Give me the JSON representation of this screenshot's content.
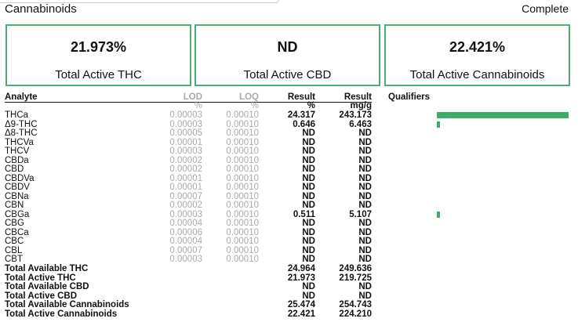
{
  "header": {
    "title": "Cannabinoids",
    "status": "Complete"
  },
  "summary": [
    {
      "value": "21.973%",
      "label": "Total Active THC"
    },
    {
      "value": "ND",
      "label": "Total Active CBD"
    },
    {
      "value": "22.421%",
      "label": "Total Active Cannabinoids"
    }
  ],
  "table": {
    "columns": [
      "Analyte",
      "LOD",
      "LOQ",
      "Result",
      "Result",
      "Qualifiers"
    ],
    "units": [
      "%",
      "%",
      "%",
      "mg/g"
    ],
    "rows": [
      [
        "THCa",
        "0.00003",
        "0.00010",
        "24.317",
        "243.173"
      ],
      [
        "Δ9-THC",
        "0.00003",
        "0.00010",
        "0.646",
        "6.463"
      ],
      [
        "Δ8-THC",
        "0.00005",
        "0.00010",
        "ND",
        "ND"
      ],
      [
        "THCVa",
        "0.00001",
        "0.00010",
        "ND",
        "ND"
      ],
      [
        "THCV",
        "0.00003",
        "0.00010",
        "ND",
        "ND"
      ],
      [
        "CBDa",
        "0.00002",
        "0.00010",
        "ND",
        "ND"
      ],
      [
        "CBD",
        "0.00002",
        "0.00010",
        "ND",
        "ND"
      ],
      [
        "CBDVa",
        "0.00001",
        "0.00010",
        "ND",
        "ND"
      ],
      [
        "CBDV",
        "0.00001",
        "0.00010",
        "ND",
        "ND"
      ],
      [
        "CBNa",
        "0.00007",
        "0.00010",
        "ND",
        "ND"
      ],
      [
        "CBN",
        "0.00002",
        "0.00010",
        "ND",
        "ND"
      ],
      [
        "CBGa",
        "0.00003",
        "0.00010",
        "0.511",
        "5.107"
      ],
      [
        "CBG",
        "0.00004",
        "0.00010",
        "ND",
        "ND"
      ],
      [
        "CBCa",
        "0.00006",
        "0.00010",
        "ND",
        "ND"
      ],
      [
        "CBC",
        "0.00004",
        "0.00010",
        "ND",
        "ND"
      ],
      [
        "CBL",
        "0.00007",
        "0.00010",
        "ND",
        "ND"
      ],
      [
        "CBT",
        "0.00003",
        "0.00010",
        "ND",
        "ND"
      ]
    ],
    "totals": [
      [
        "Total Available THC",
        "24.964",
        "249.636"
      ],
      [
        "Total Active THC",
        "21.973",
        "219.725"
      ],
      [
        "Total Available CBD",
        "ND",
        "ND"
      ],
      [
        "Total Active CBD",
        "ND",
        "ND"
      ],
      [
        "Total Available Cannabinoids",
        "25.474",
        "254.743"
      ],
      [
        "Total Active Cannabinoids",
        "22.421",
        "224.210"
      ]
    ]
  }
}
